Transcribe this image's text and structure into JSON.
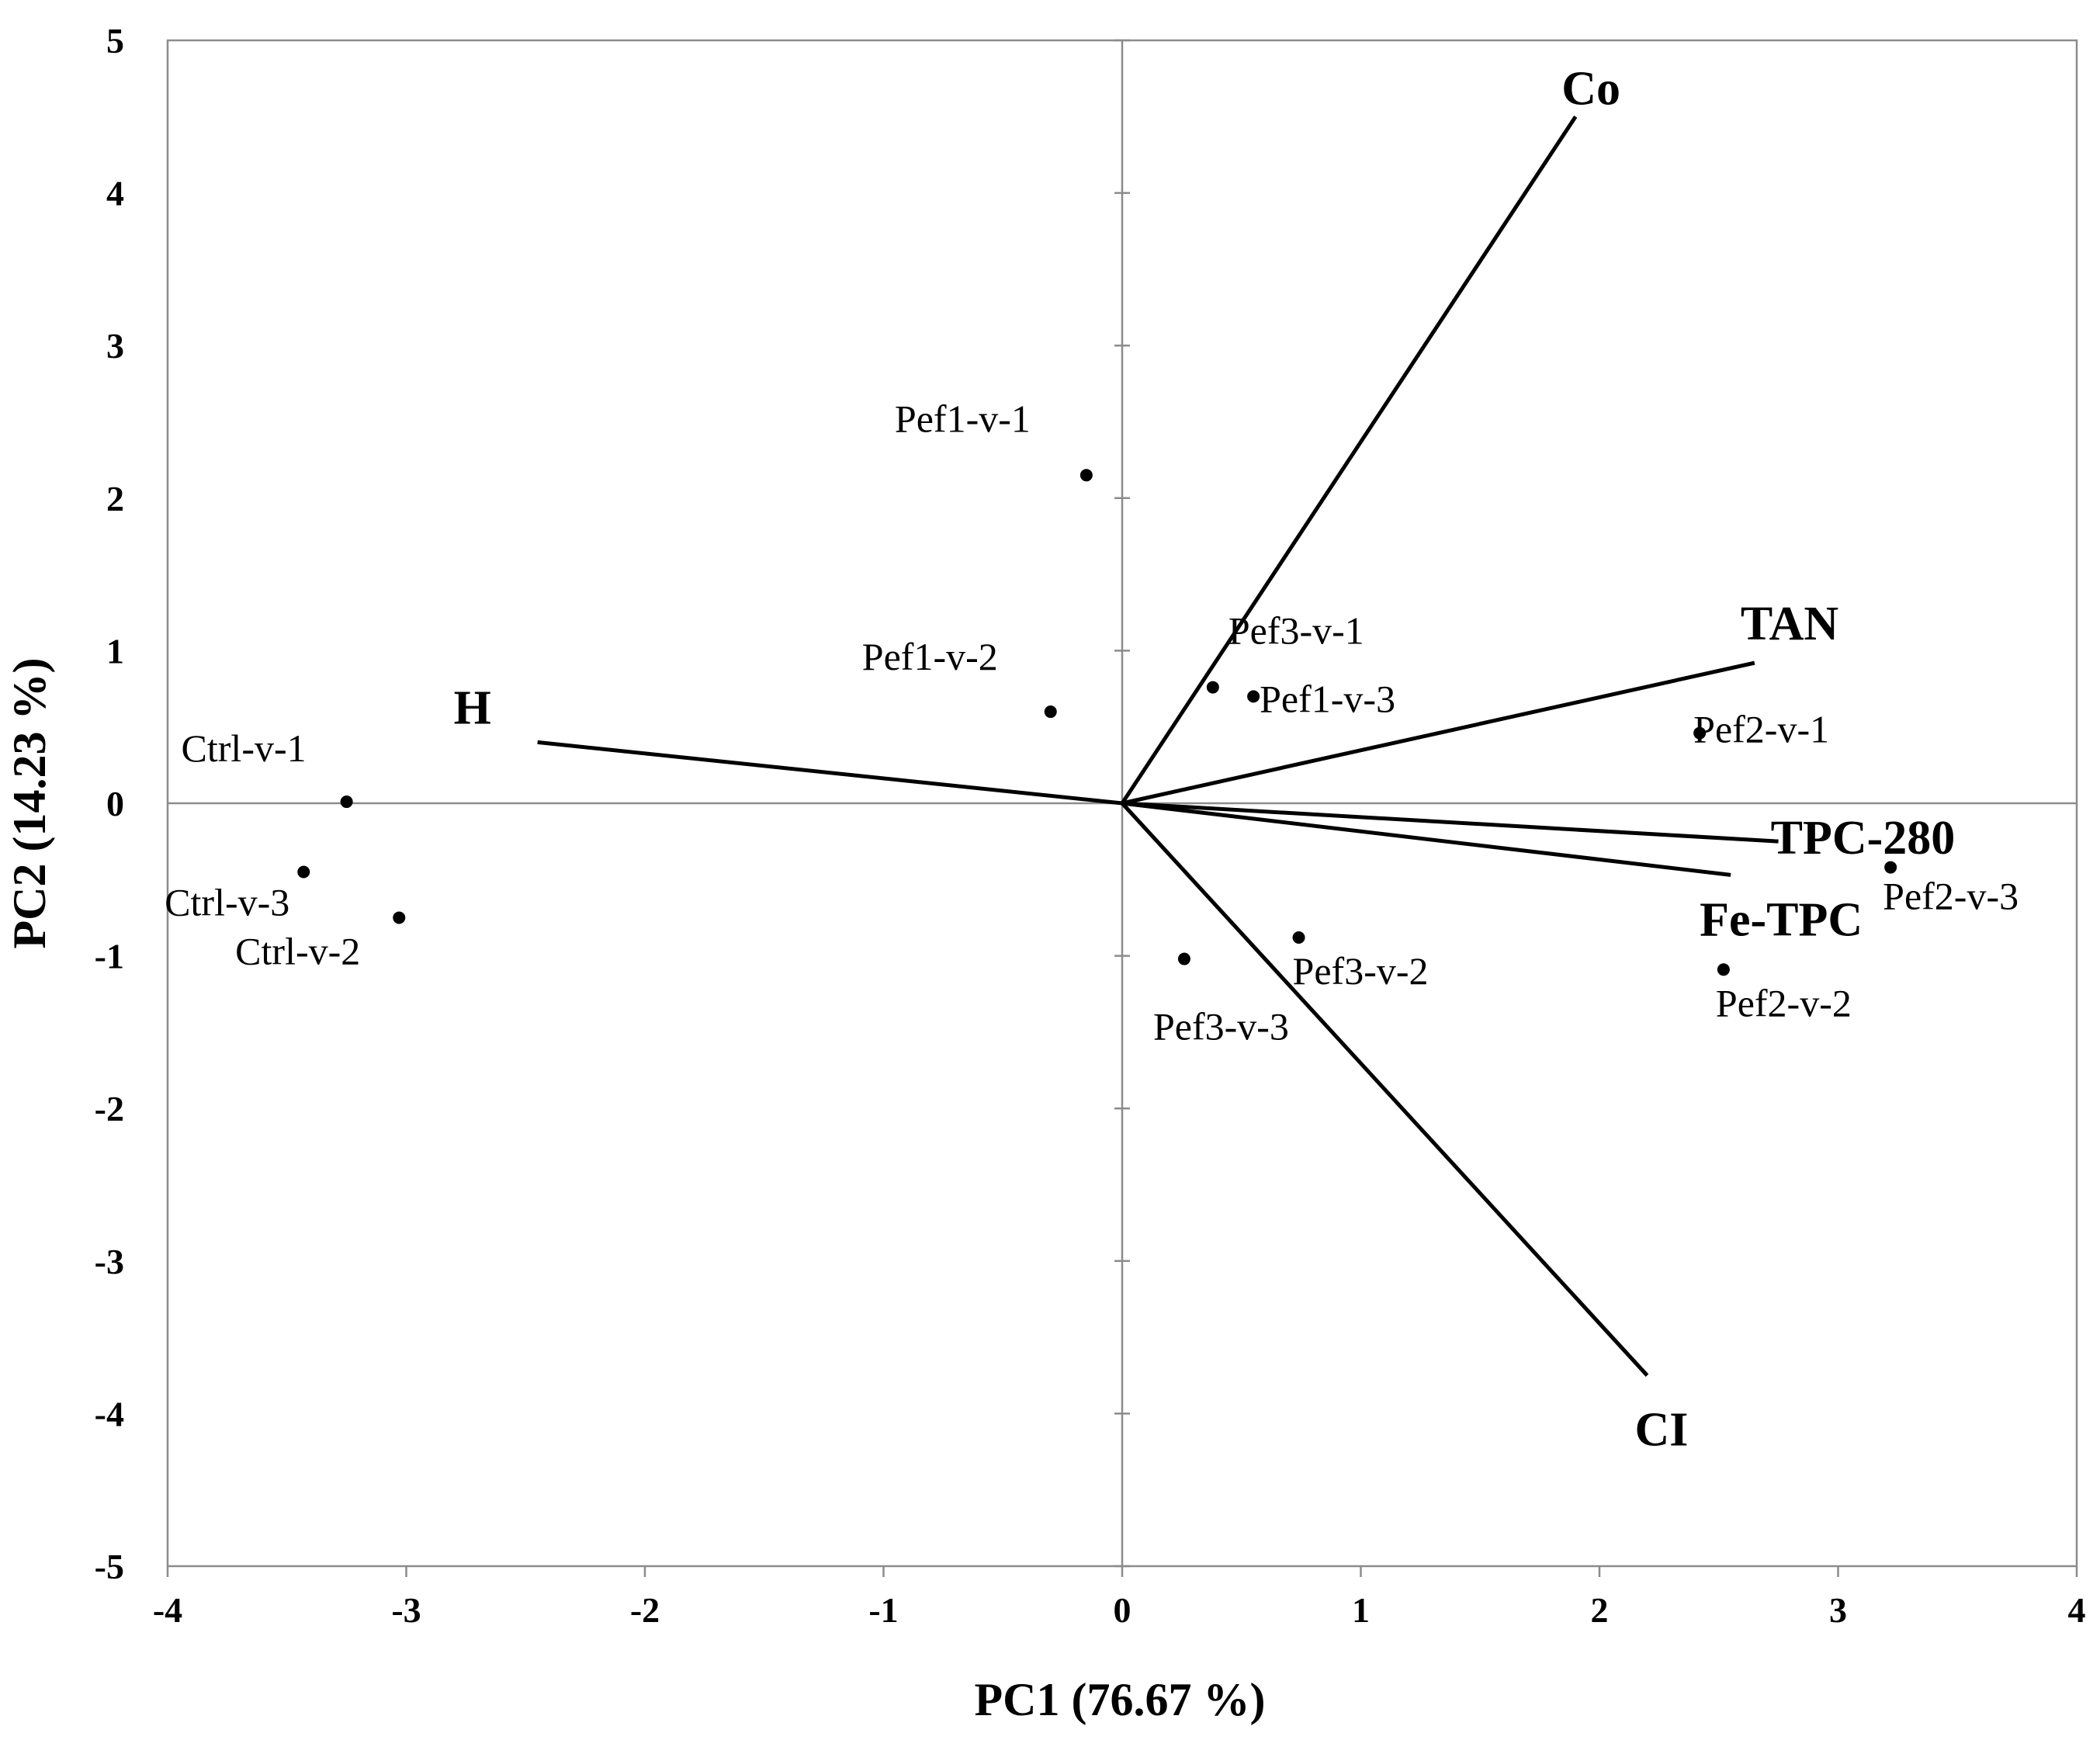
{
  "chart_data": {
    "type": "scatter",
    "subtype": "pca-biplot",
    "title": "",
    "xlabel": "PC1 (76.67 %)",
    "ylabel": "PC2 (14.23 %)",
    "xlim": [
      -4,
      4
    ],
    "ylim": [
      -5,
      5
    ],
    "xticks": [
      -4,
      -3,
      -2,
      -1,
      0,
      1,
      2,
      3,
      4
    ],
    "yticks": [
      -5,
      -4,
      -3,
      -2,
      -1,
      0,
      1,
      2,
      3,
      4,
      5
    ],
    "grid": false,
    "legend": "none",
    "observations": [
      {
        "label": "Pef1-v-1",
        "x": -0.15,
        "y": 2.15
      },
      {
        "label": "Pef1-v-2",
        "x": -0.3,
        "y": 0.6
      },
      {
        "label": "Pef3-v-1",
        "x": 0.38,
        "y": 0.76
      },
      {
        "label": "Pef1-v-3",
        "x": 0.55,
        "y": 0.7
      },
      {
        "label": "Ctrl-v-1",
        "x": -3.25,
        "y": 0.01
      },
      {
        "label": "Ctrl-v-3",
        "x": -3.43,
        "y": -0.45
      },
      {
        "label": "Ctrl-v-2",
        "x": -3.03,
        "y": -0.75
      },
      {
        "label": "Pef3-v-2",
        "x": 0.74,
        "y": -0.88
      },
      {
        "label": "Pef3-v-3",
        "x": 0.26,
        "y": -1.02
      },
      {
        "label": "Pef2-v-1",
        "x": 2.42,
        "y": 0.46
      },
      {
        "label": "Pef2-v-3",
        "x": 3.22,
        "y": -0.42
      },
      {
        "label": "Pef2-v-2",
        "x": 2.52,
        "y": -1.09
      }
    ],
    "loadings": [
      {
        "label": "Co",
        "x": 1.9,
        "y": 4.5
      },
      {
        "label": "TAN",
        "x": 2.65,
        "y": 0.92
      },
      {
        "label": "TPC-280",
        "x": 2.75,
        "y": -0.25
      },
      {
        "label": "Fe-TPC",
        "x": 2.55,
        "y": -0.47
      },
      {
        "label": "CI",
        "x": 2.2,
        "y": -3.75
      },
      {
        "label": "H",
        "x": -2.45,
        "y": 0.4
      }
    ]
  }
}
